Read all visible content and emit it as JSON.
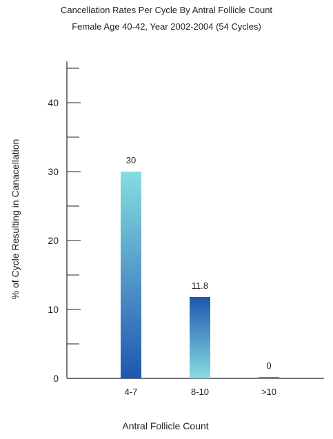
{
  "chart_data": {
    "type": "bar",
    "title": "Cancellation Rates Per Cycle By Antral Follicle Count",
    "subtitle": "Female  Age 40-42, Year 2002-2004 (54 Cycles)",
    "xlabel": "Antral Follicle Count",
    "ylabel": "% of Cycle Resulting in Canacellation",
    "categories": [
      "4-7",
      "8-10",
      ">10"
    ],
    "values": [
      30,
      11.8,
      0
    ],
    "data_labels": [
      "30",
      "11.8",
      "0"
    ],
    "ylim": [
      0,
      45
    ],
    "y_ticks": [
      0,
      10,
      20,
      30,
      40
    ],
    "grid": false,
    "colors": {
      "bar_gradient_light": "#86dde0",
      "bar_gradient_dark": "#1f56b0",
      "axis": "#222222"
    }
  }
}
